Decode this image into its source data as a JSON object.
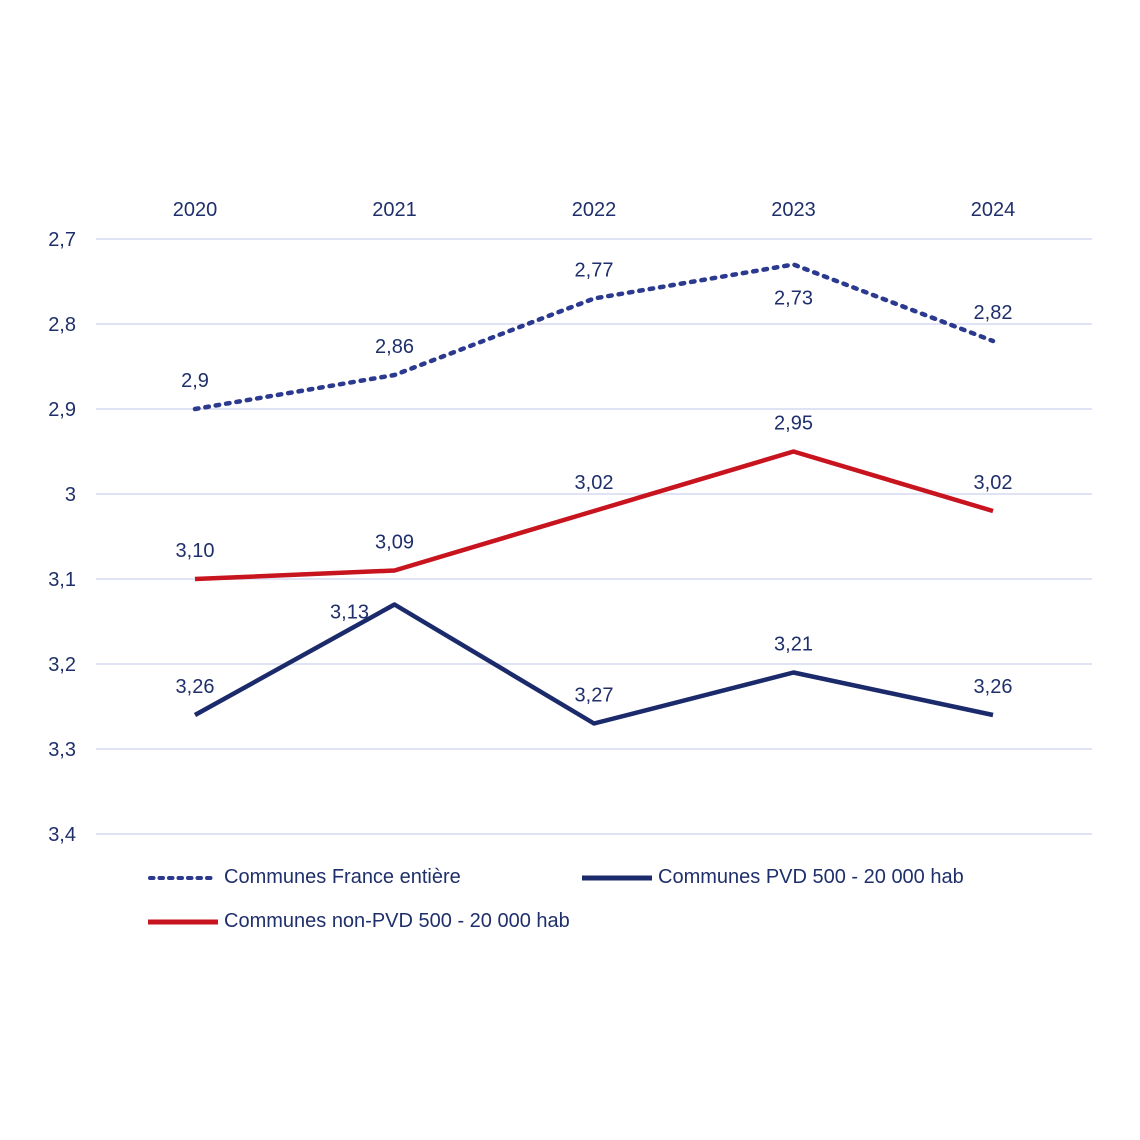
{
  "chart_data": {
    "type": "line",
    "title": "",
    "xlabel": "",
    "ylabel": "",
    "categories": [
      "2020",
      "2021",
      "2022",
      "2023",
      "2024"
    ],
    "ylim": [
      2.7,
      3.4
    ],
    "y_inverted": true,
    "yticks": [
      2.7,
      2.8,
      2.9,
      3.0,
      3.1,
      3.2,
      3.3,
      3.4
    ],
    "ytick_labels": [
      "2,7",
      "2,8",
      "2,9",
      "3",
      "3,1",
      "3,2",
      "3,3",
      "3,4"
    ],
    "x_axis_position": "top",
    "grid": true,
    "legend_position": "bottom",
    "series": [
      {
        "name": "Communes France entière",
        "style": "dotted",
        "color": "#2b3a8f",
        "values": [
          2.9,
          2.86,
          2.77,
          2.73,
          2.82
        ],
        "labels": [
          "2,9",
          "2,86",
          "2,77",
          "2,73",
          "2,82"
        ],
        "label_pos": [
          "above",
          "above",
          "above",
          "below",
          "above"
        ]
      },
      {
        "name": "Communes PVD 500 - 20 000 hab",
        "style": "solid",
        "color": "#1b2a6b",
        "values": [
          3.26,
          3.13,
          3.27,
          3.21,
          3.26
        ],
        "labels": [
          "3,26",
          "3,13",
          "3,27",
          "3,21",
          "3,26"
        ],
        "label_pos": [
          "above",
          "left",
          "above",
          "above",
          "above"
        ]
      },
      {
        "name": "Communes non-PVD 500 - 20 000 hab",
        "style": "solid",
        "color": "#c8141e",
        "values": [
          3.1,
          3.09,
          3.02,
          2.95,
          3.02
        ],
        "labels": [
          "3,10",
          "3,09",
          "3,02",
          "2,95",
          "3,02"
        ],
        "label_pos": [
          "above",
          "above",
          "above",
          "above",
          "above"
        ]
      }
    ]
  }
}
